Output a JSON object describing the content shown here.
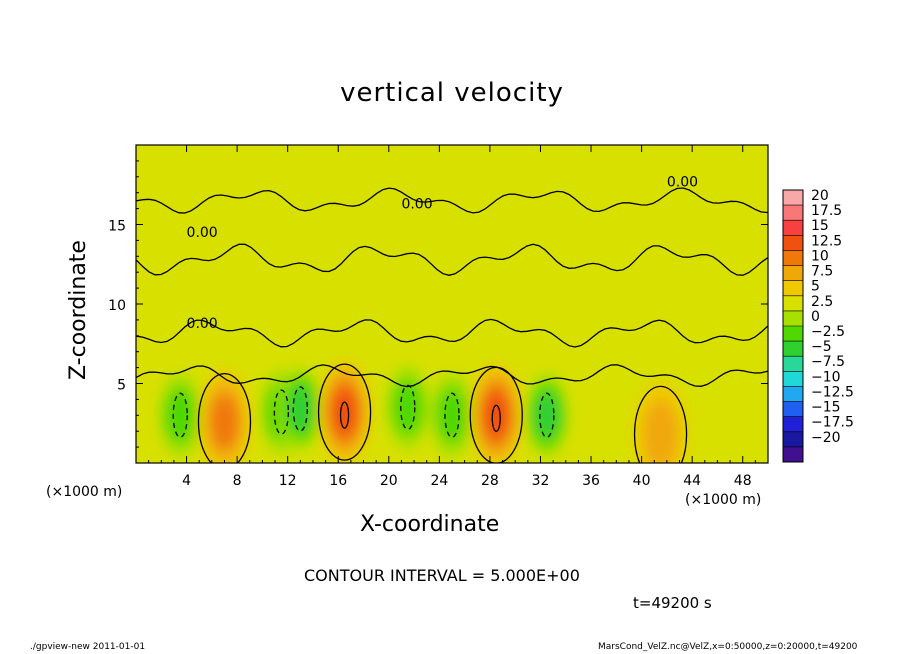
{
  "chart_data": {
    "type": "heatmap",
    "title": "vertical velocity",
    "xlabel": "X-coordinate",
    "ylabel": "Z-coordinate",
    "x_unit_label": "(×1000 m)",
    "x_ticks": [
      4,
      8,
      12,
      16,
      20,
      24,
      28,
      32,
      36,
      40,
      44,
      48
    ],
    "y_ticks": [
      5,
      10,
      15
    ],
    "xlim": [
      0,
      50
    ],
    "ylim": [
      0,
      20
    ],
    "contour_interval_text": "CONTOUR INTERVAL = 5.000E+00",
    "contour_label": "0.00",
    "time_text": "t=49200 s",
    "colorbar": {
      "levels": [
        "20",
        "17.5",
        "15",
        "12.5",
        "10",
        "7.5",
        "5",
        "2.5",
        "0",
        "−2.5",
        "−5",
        "−7.5",
        "−10",
        "−12.5",
        "−15",
        "−17.5",
        "−20"
      ],
      "colors": [
        "#f8a8a8",
        "#f87878",
        "#f84040",
        "#f05010",
        "#f07808",
        "#f0a808",
        "#f0c800",
        "#d8e000",
        "#a8e000",
        "#50d800",
        "#30d030",
        "#28d898",
        "#20d8d8",
        "#20a8f0",
        "#2060f0",
        "#2020d8",
        "#1818a0",
        "#401090"
      ]
    },
    "updrafts": [
      {
        "x": 7.0,
        "z": 2.6,
        "peak": 7.5
      },
      {
        "x": 16.5,
        "z": 3.2,
        "peak": 10
      },
      {
        "x": 28.5,
        "z": 3.0,
        "peak": 10
      },
      {
        "x": 41.5,
        "z": 1.8,
        "peak": 5
      }
    ],
    "downdrafts": [
      {
        "x": 3.5,
        "z": 3.0,
        "peak": -5
      },
      {
        "x": 11.5,
        "z": 3.2,
        "peak": -5
      },
      {
        "x": 13.0,
        "z": 3.4,
        "peak": -7.5
      },
      {
        "x": 21.5,
        "z": 3.5,
        "peak": -5
      },
      {
        "x": 25.0,
        "z": 3.0,
        "peak": -5
      },
      {
        "x": 32.5,
        "z": 3.0,
        "peak": -7.5
      }
    ]
  },
  "footer": {
    "left": "./gpview-new   2011-01-01",
    "right": "MarsCond_VelZ.nc@VelZ,x=0:50000,z=0:20000,t=49200"
  }
}
